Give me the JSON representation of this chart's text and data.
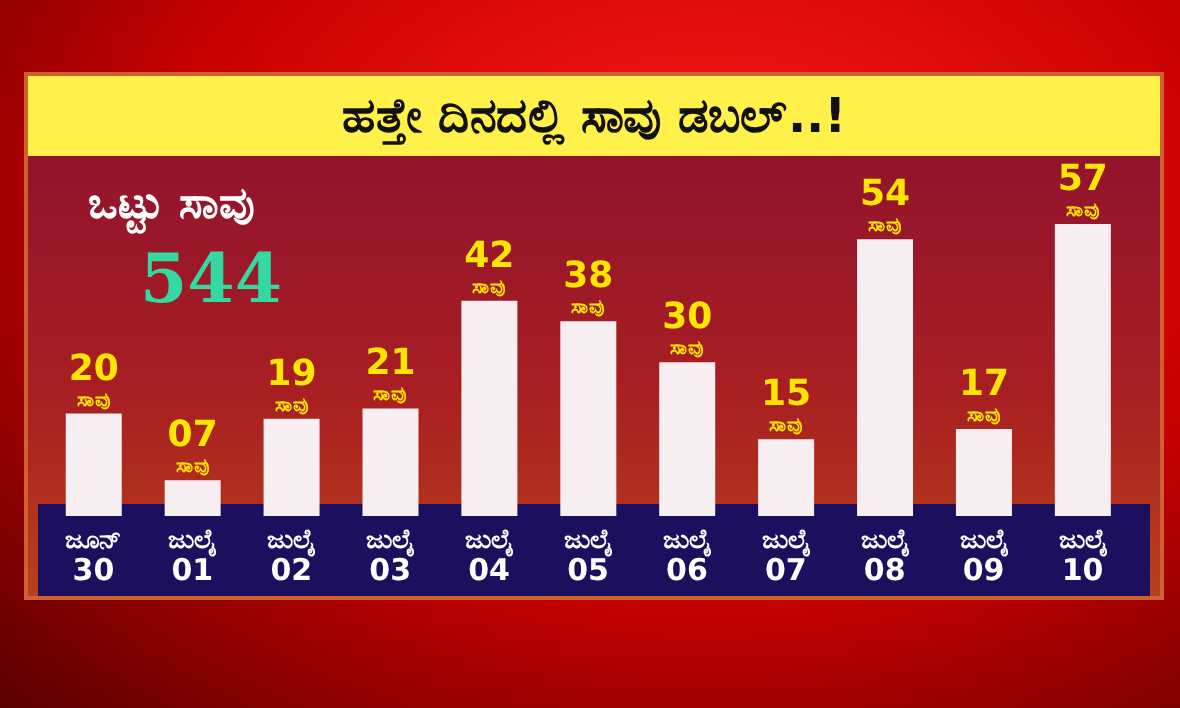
{
  "chart_data": {
    "type": "bar",
    "title": "ಹತ್ತೇ ದಿನದಲ್ಲಿ ಸಾವು ಡಬಲ್..!",
    "annotations": [
      "ಒಟ್ಟು ಸಾವು",
      "544"
    ],
    "categories": [
      "ಜೂನ್ 30",
      "ಜುಲೈ 01",
      "ಜುಲೈ 02",
      "ಜುಲೈ 03",
      "ಜುಲೈ 04",
      "ಜುಲೈ 05",
      "ಜುಲೈ 06",
      "ಜುಲೈ 07",
      "ಜುಲೈ 08",
      "ಜುಲೈ 09",
      "ಜುಲೈ 10"
    ],
    "values": [
      20,
      7,
      19,
      21,
      42,
      38,
      30,
      15,
      54,
      17,
      57
    ],
    "value_labels": [
      "20 ಸಾವು",
      "07 ಸಾವು",
      "19 ಸಾವು",
      "21 ಸಾವು",
      "42 ಸಾವು",
      "38 ಸಾವು",
      "30 ಸಾವು",
      "15 ಸಾವು",
      "54 ಸಾವು",
      "17 ಸಾವು",
      "57 ಸಾವು"
    ],
    "color": "#f7eef2"
  }
}
